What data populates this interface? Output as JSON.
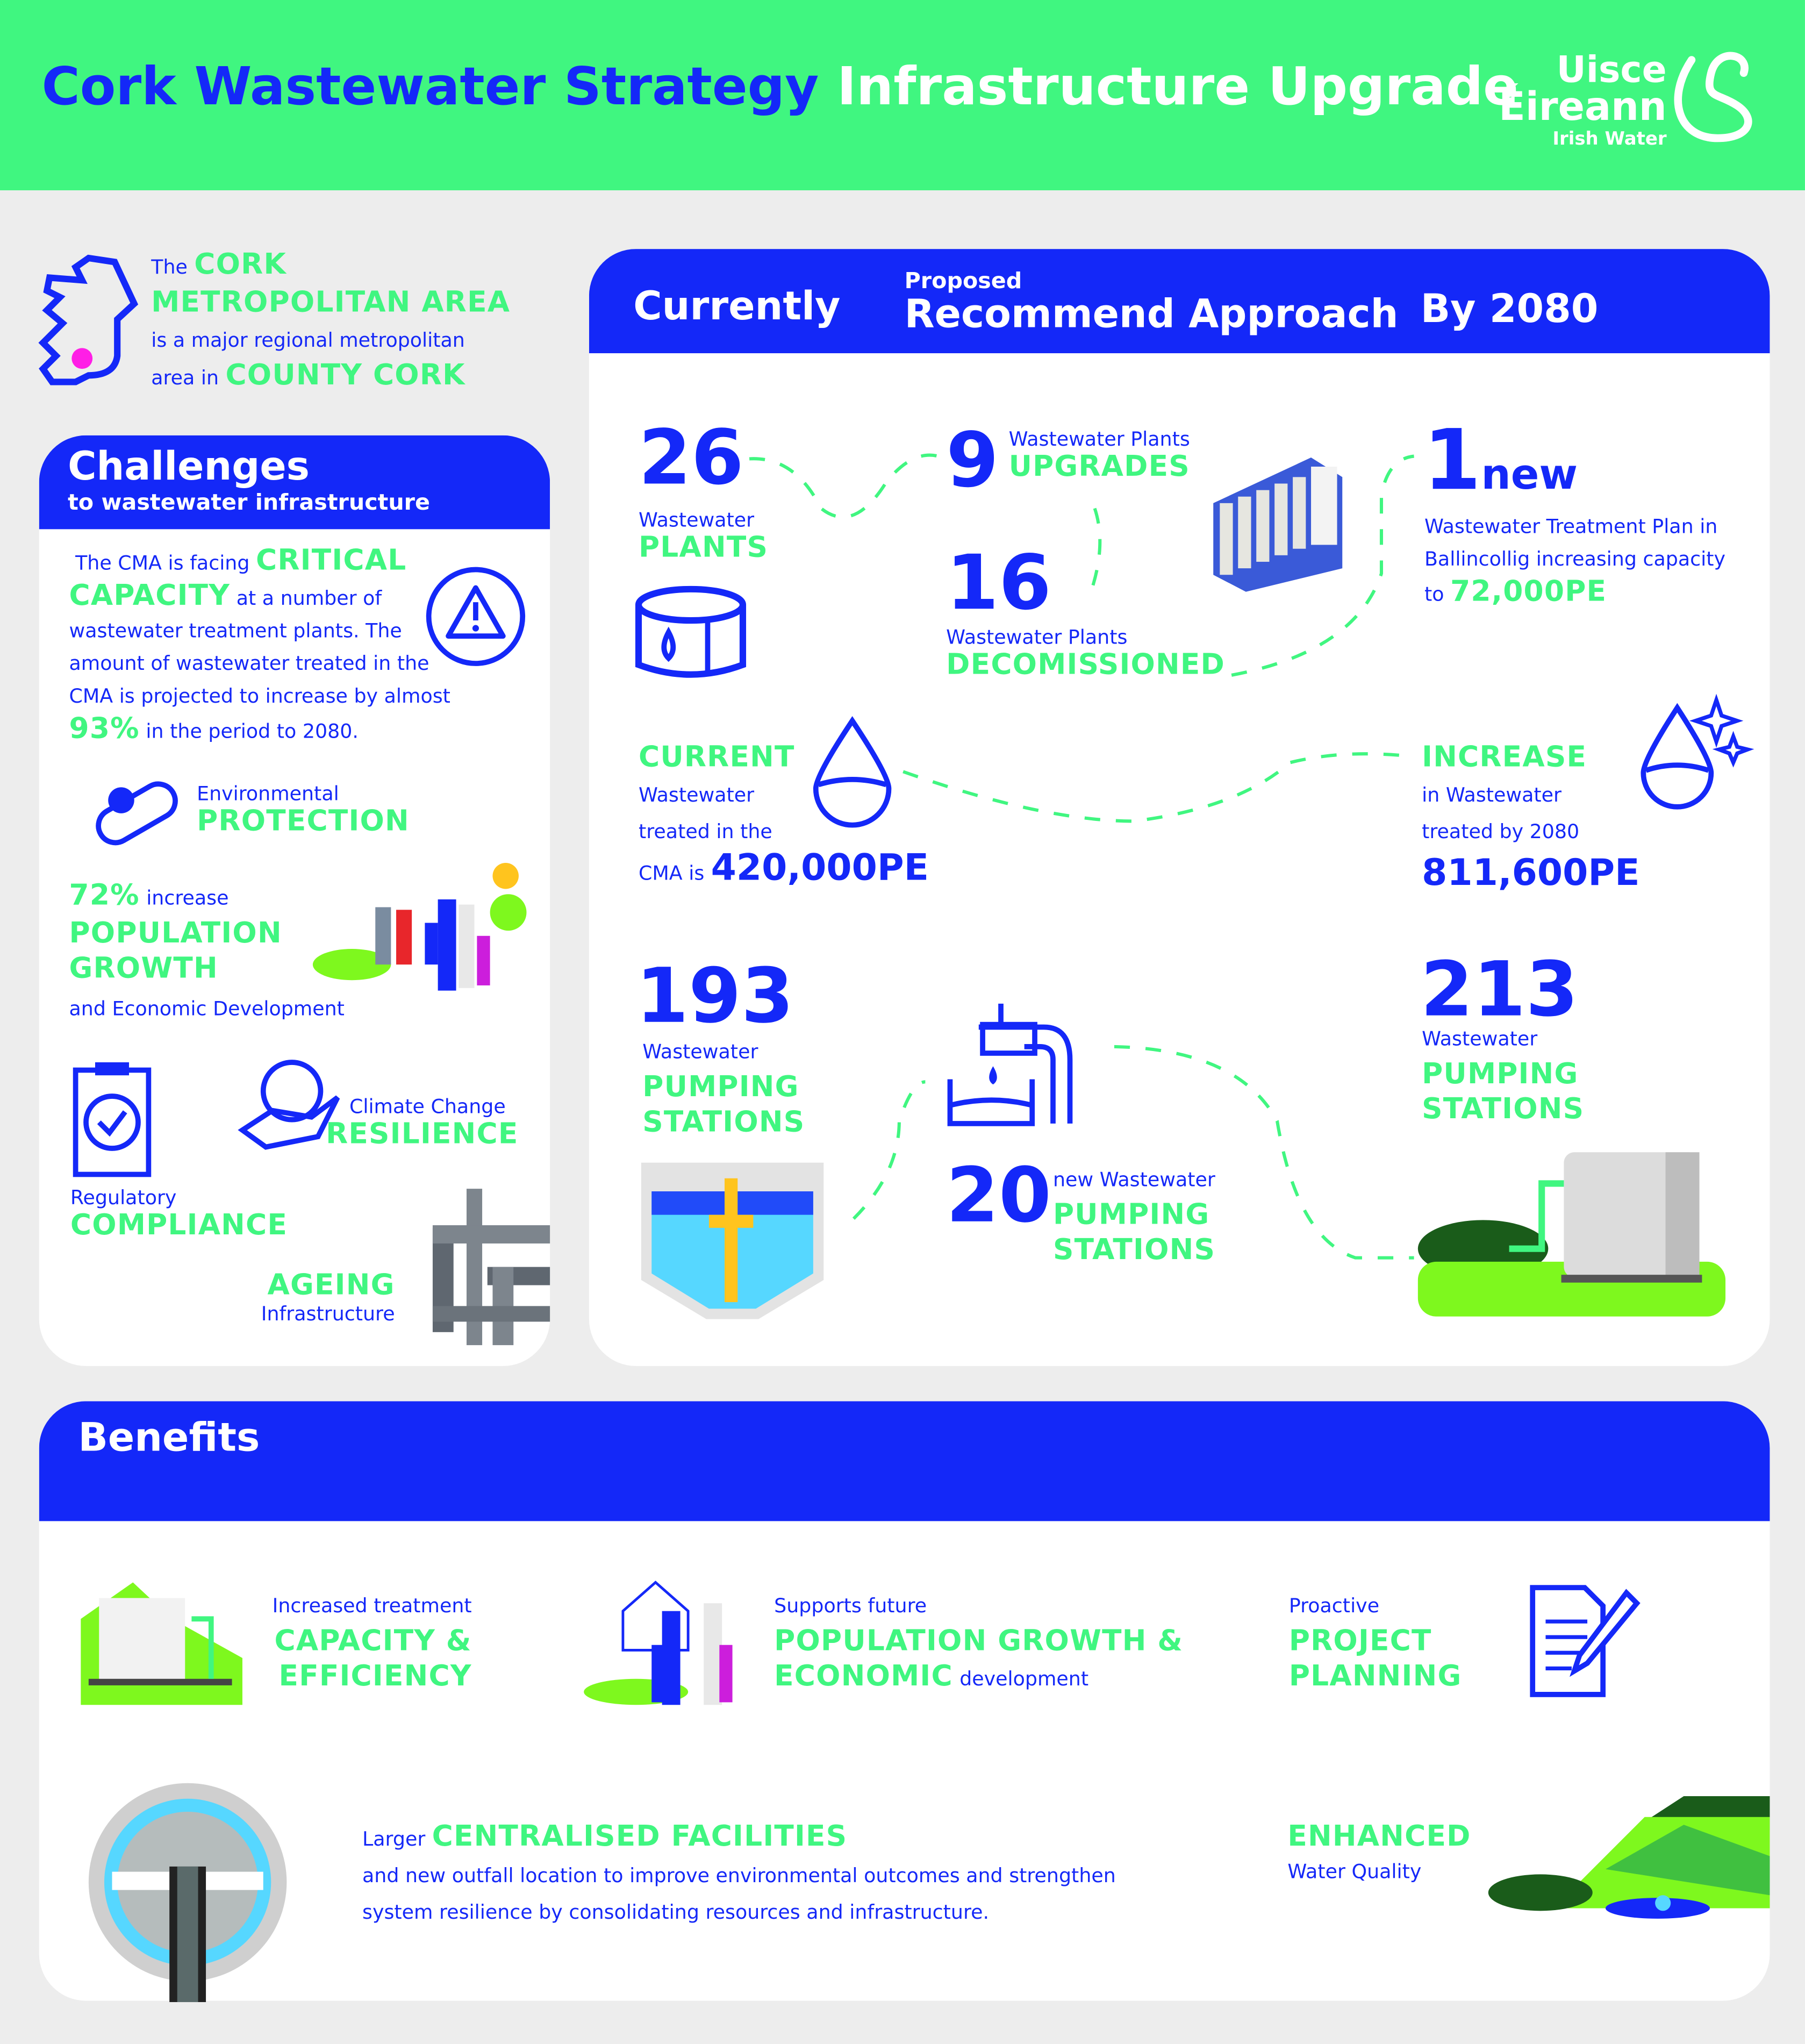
{
  "colors": {
    "green": "#40f680",
    "blue": "#1428f8",
    "background": "#ededed",
    "accent_pink": "#ff1ee6"
  },
  "header": {
    "title_part1": "Cork Wastewater Strategy",
    "title_part2": "Infrastructure Upgrade",
    "logo": {
      "line1": "Uisce",
      "line2": "Éireann",
      "line3": "Irish Water"
    }
  },
  "intro": {
    "the": "The",
    "cork": "CORK",
    "metro": "METROPOLITAN AREA",
    "desc": "is a major regional metropolitan",
    "area_in": "area in",
    "county": "COUNTY CORK"
  },
  "challenges": {
    "title": "Challenges",
    "subtitle": "to wastewater infrastructure",
    "critical": {
      "t1": "The CMA is facing",
      "h1": "CRITICAL",
      "h2": "CAPACITY",
      "t2": "at a number of",
      "t3": "wastewater treatment plants. The",
      "t4": "amount of wastewater treated in the",
      "t5": "CMA is projected to increase by almost",
      "pct": "93%",
      "t6": "in the period to 2080."
    },
    "env": {
      "label": "Environmental",
      "head": "PROTECTION"
    },
    "pop": {
      "pct": "72%",
      "inc": "increase",
      "h1": "POPULATION",
      "h2": "GROWTH",
      "sub": "and Economic Development"
    },
    "compliance": {
      "label": "Regulatory",
      "head": "COMPLIANCE"
    },
    "climate": {
      "label": "Climate Change",
      "head": "RESILIENCE"
    },
    "ageing": {
      "head": "AGEING",
      "label": "Infrastructure"
    }
  },
  "main": {
    "tabs": {
      "current": "Currently",
      "proposed_small": "Proposed",
      "proposed": "Recommend Approach",
      "future": "By 2080"
    },
    "plants": {
      "num": "26",
      "label": "Wastewater",
      "head": "PLANTS"
    },
    "upgrades": {
      "num": "9",
      "label": "Wastewater Plants",
      "head": "UPGRADES"
    },
    "decom": {
      "num": "16",
      "label": "Wastewater Plants",
      "head": "DECOMISSIONED"
    },
    "newplant": {
      "num": "1",
      "new": "new",
      "l1": "Wastewater Treatment Plan in",
      "l2": "Ballincollig increasing capacity",
      "to": "to",
      "val": "72,000PE"
    },
    "current": {
      "head": "CURRENT",
      "l1": "Wastewater",
      "l2": "treated in the",
      "l3": "CMA is",
      "val": "420,000PE"
    },
    "increase": {
      "head": "INCREASE",
      "l1": "in Wastewater",
      "l2": "treated by 2080",
      "val": "811,600PE"
    },
    "pump_now": {
      "num": "193",
      "label": "Wastewater",
      "h1": "PUMPING",
      "h2": "STATIONS"
    },
    "pump_new": {
      "num": "20",
      "label": "new Wastewater",
      "h1": "PUMPING",
      "h2": "STATIONS"
    },
    "pump_future": {
      "num": "213",
      "label": "Wastewater",
      "h1": "PUMPING",
      "h2": "STATIONS"
    }
  },
  "benefits": {
    "title": "Benefits",
    "capacity": {
      "label": "Increased treatment",
      "h1": "CAPACITY &",
      "h2": "EFFICIENCY"
    },
    "population": {
      "label": "Supports future",
      "h1": "POPULATION GROWTH &",
      "h2": "ECONOMIC",
      "tail": "development"
    },
    "planning": {
      "label": "Proactive",
      "h1": "PROJECT",
      "h2": "PLANNING"
    },
    "central": {
      "pre": "Larger",
      "head": "CENTRALISED FACILITIES",
      "l1": "and new outfall location to improve environmental  outcomes and strengthen",
      "l2": "system resilience by consolidating resources and infrastructure."
    },
    "water": {
      "head": "ENHANCED",
      "label": "Water Quality"
    }
  }
}
